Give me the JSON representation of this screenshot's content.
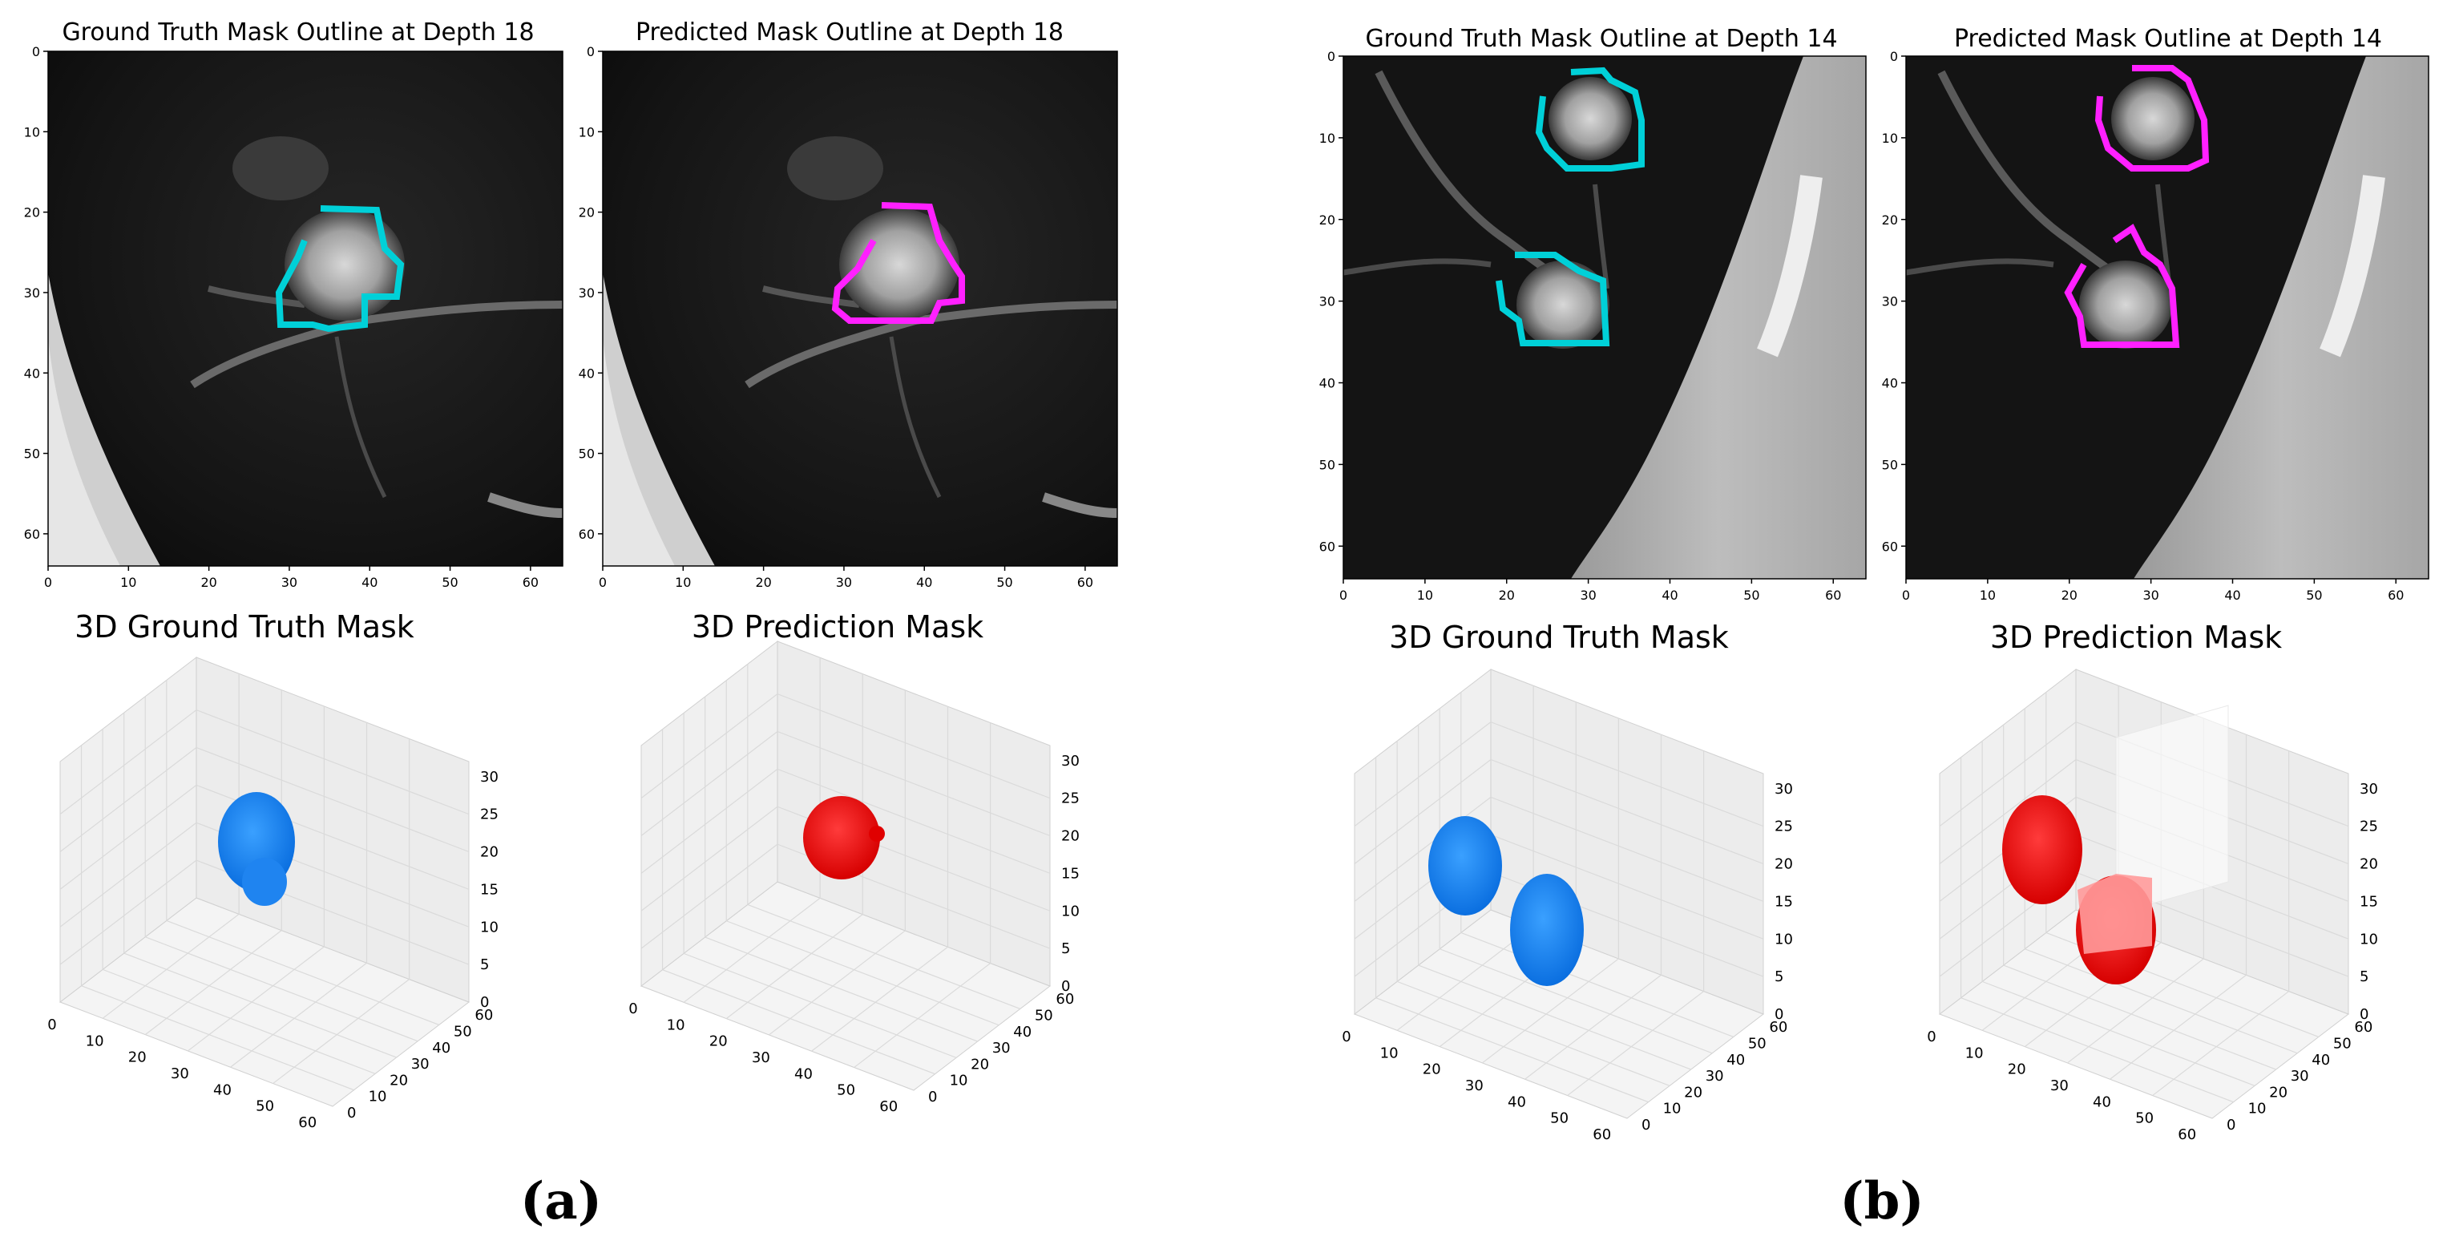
{
  "figure": {
    "panels": [
      {
        "label": "(a)",
        "slice_left_title": "Ground Truth Mask Outline at Depth 18",
        "slice_right_title": "Predicted Mask Outline at Depth 18",
        "vol_left_title": "3D Ground Truth Mask",
        "vol_right_title": "3D Prediction Mask"
      },
      {
        "label": "(b)",
        "slice_left_title": "Ground Truth Mask Outline at Depth 14",
        "slice_right_title": "Predicted Mask Outline at Depth 14",
        "vol_left_title": "3D Ground Truth Mask",
        "vol_right_title": "3D Prediction Mask"
      }
    ],
    "slice_ticks": [
      "0",
      "10",
      "20",
      "30",
      "40",
      "50",
      "60"
    ],
    "vol_xy_ticks": [
      "0",
      "10",
      "20",
      "30",
      "40",
      "50",
      "60"
    ],
    "vol_z_ticks": [
      "0",
      "5",
      "10",
      "15",
      "20",
      "25",
      "30"
    ],
    "colors": {
      "ground_truth_outline": "#00d0d8",
      "prediction_outline": "#ff20ff",
      "ground_truth_volume": "#1e88ff",
      "prediction_volume": "#ff1a1a"
    }
  }
}
